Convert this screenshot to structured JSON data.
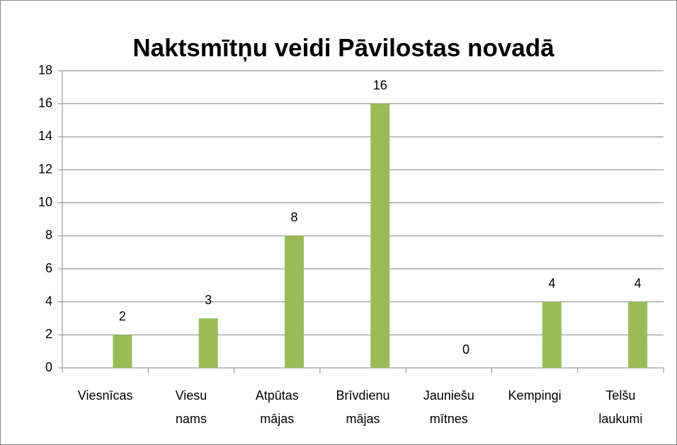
{
  "chart_data": {
    "type": "bar",
    "title": "Naktsmītņu veidi Pāvilostas novadā",
    "categories": [
      "Viesnīcas",
      "Viesu nams",
      "Atpūtas mājas",
      "Brīvdienu mājas",
      "Jauniešu mītnes",
      "Kempingi",
      "Telšu laukumi"
    ],
    "values": [
      2,
      3,
      8,
      16,
      0,
      4,
      4
    ],
    "color": "#9bbb59",
    "ylim": [
      0,
      18
    ],
    "yticks": [
      0,
      2,
      4,
      6,
      8,
      10,
      12,
      14,
      16,
      18
    ],
    "grid": true
  }
}
